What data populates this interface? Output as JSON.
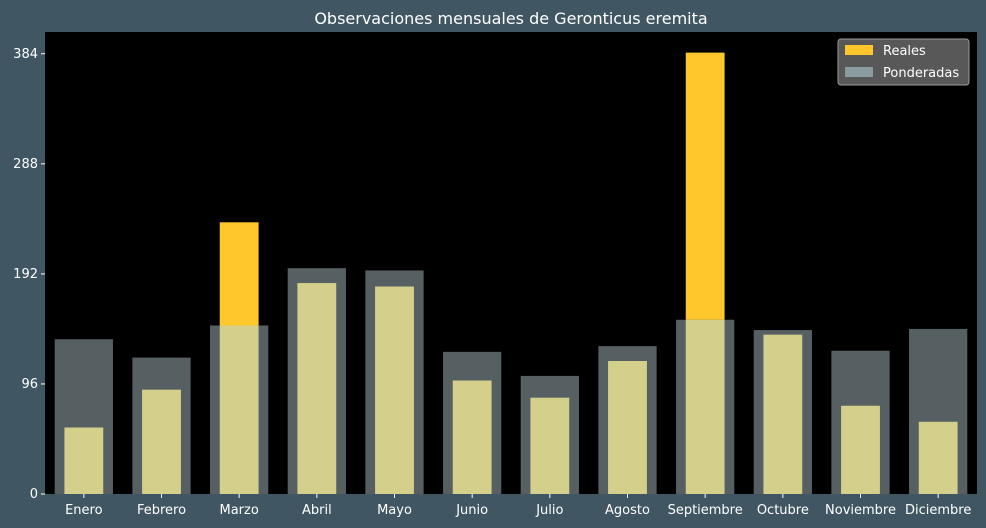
{
  "chart_data": {
    "type": "bar",
    "title": "Observaciones mensuales de Geronticus eremita",
    "xlabel": "",
    "ylabel": "",
    "categories": [
      "Enero",
      "Febrero",
      "Marzo",
      "Abril",
      "Mayo",
      "Junio",
      "Julio",
      "Agosto",
      "Septiembre",
      "Octubre",
      "Noviembre",
      "Diciembre"
    ],
    "series": [
      {
        "name": "Reales",
        "color": "#ffc72c",
        "values": [
          58,
          91,
          237,
          184,
          181,
          99,
          84,
          116,
          385,
          139,
          77,
          63
        ]
      },
      {
        "name": "Ponderadas",
        "color": "#8a9ba0",
        "values": [
          135,
          119,
          147,
          197,
          195,
          124,
          103,
          129,
          152,
          143,
          125,
          144
        ]
      }
    ],
    "overlap_color": "#d4d08c",
    "yticks": [
      0,
      96,
      192,
      288,
      384
    ],
    "ylim": [
      0,
      403
    ],
    "grid": false,
    "legend_position": "top-right",
    "plot_background": "#000000",
    "figure_background": "#415663"
  }
}
